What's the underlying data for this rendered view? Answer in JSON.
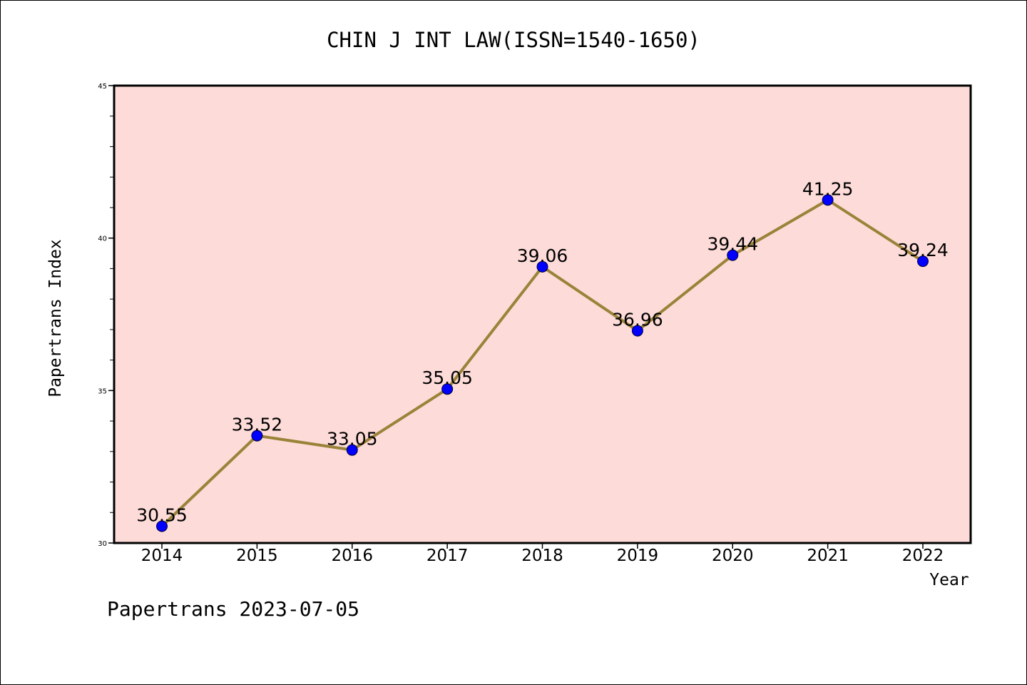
{
  "chart_data": {
    "type": "line",
    "title": "CHIN J INT LAW(ISSN=1540-1650)",
    "xlabel": "Year",
    "ylabel": "Papertrans Index",
    "categories": [
      "2014",
      "2015",
      "2016",
      "2017",
      "2018",
      "2019",
      "2020",
      "2021",
      "2022"
    ],
    "series": [
      {
        "values": [
          30.55,
          33.52,
          33.05,
          35.05,
          39.06,
          36.96,
          39.44,
          41.25,
          39.24
        ],
        "labels": [
          "30.55",
          "33.52",
          "33.05",
          "35.05",
          "39.06",
          "36.96",
          "39.44",
          "41.25",
          "39.24"
        ]
      }
    ],
    "ylim": [
      30,
      45
    ],
    "yticks": [
      "30",
      "35",
      "40",
      "45"
    ],
    "ytick_values": [
      30,
      35,
      40,
      45
    ],
    "y_minor_step": 1,
    "grid": false,
    "legend": "none",
    "colors": {
      "plot_background": "#fddbd8",
      "line": "#9a8339",
      "marker": "#0000ff",
      "axis": "#000000"
    }
  },
  "footer": {
    "text": "Papertrans 2023-07-05"
  }
}
